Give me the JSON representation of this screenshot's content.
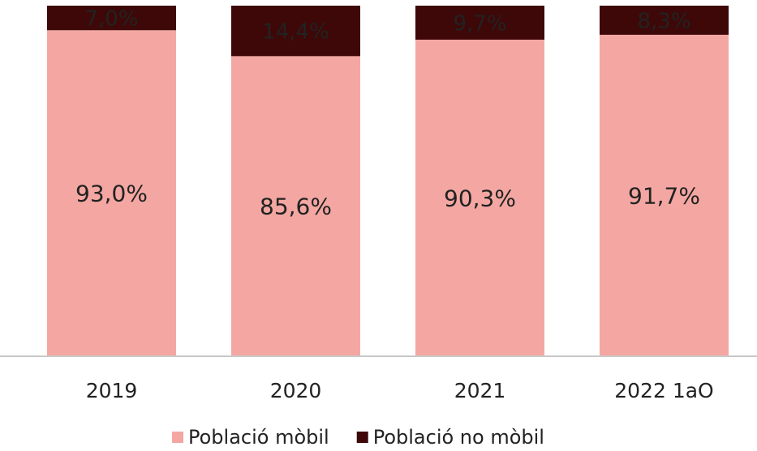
{
  "chart_data": {
    "type": "stacked_bar",
    "categories": [
      "2019",
      "2020",
      "2021",
      "2022 1aO"
    ],
    "series": [
      {
        "name": "Població mòbil",
        "color": "#f4a7a2",
        "values": [
          93.0,
          85.6,
          90.3,
          91.7
        ],
        "value_labels": [
          "93,0%",
          "85,6%",
          "90,3%",
          "91,7%"
        ]
      },
      {
        "name": "Població no mòbil",
        "color": "#3e0808",
        "values": [
          7.0,
          14.4,
          9.7,
          8.3
        ],
        "value_labels": [
          "7,0%",
          "14,4%",
          "9,7%",
          "8,3%"
        ]
      }
    ],
    "ylim": [
      0,
      100
    ],
    "legend": "bottom"
  }
}
